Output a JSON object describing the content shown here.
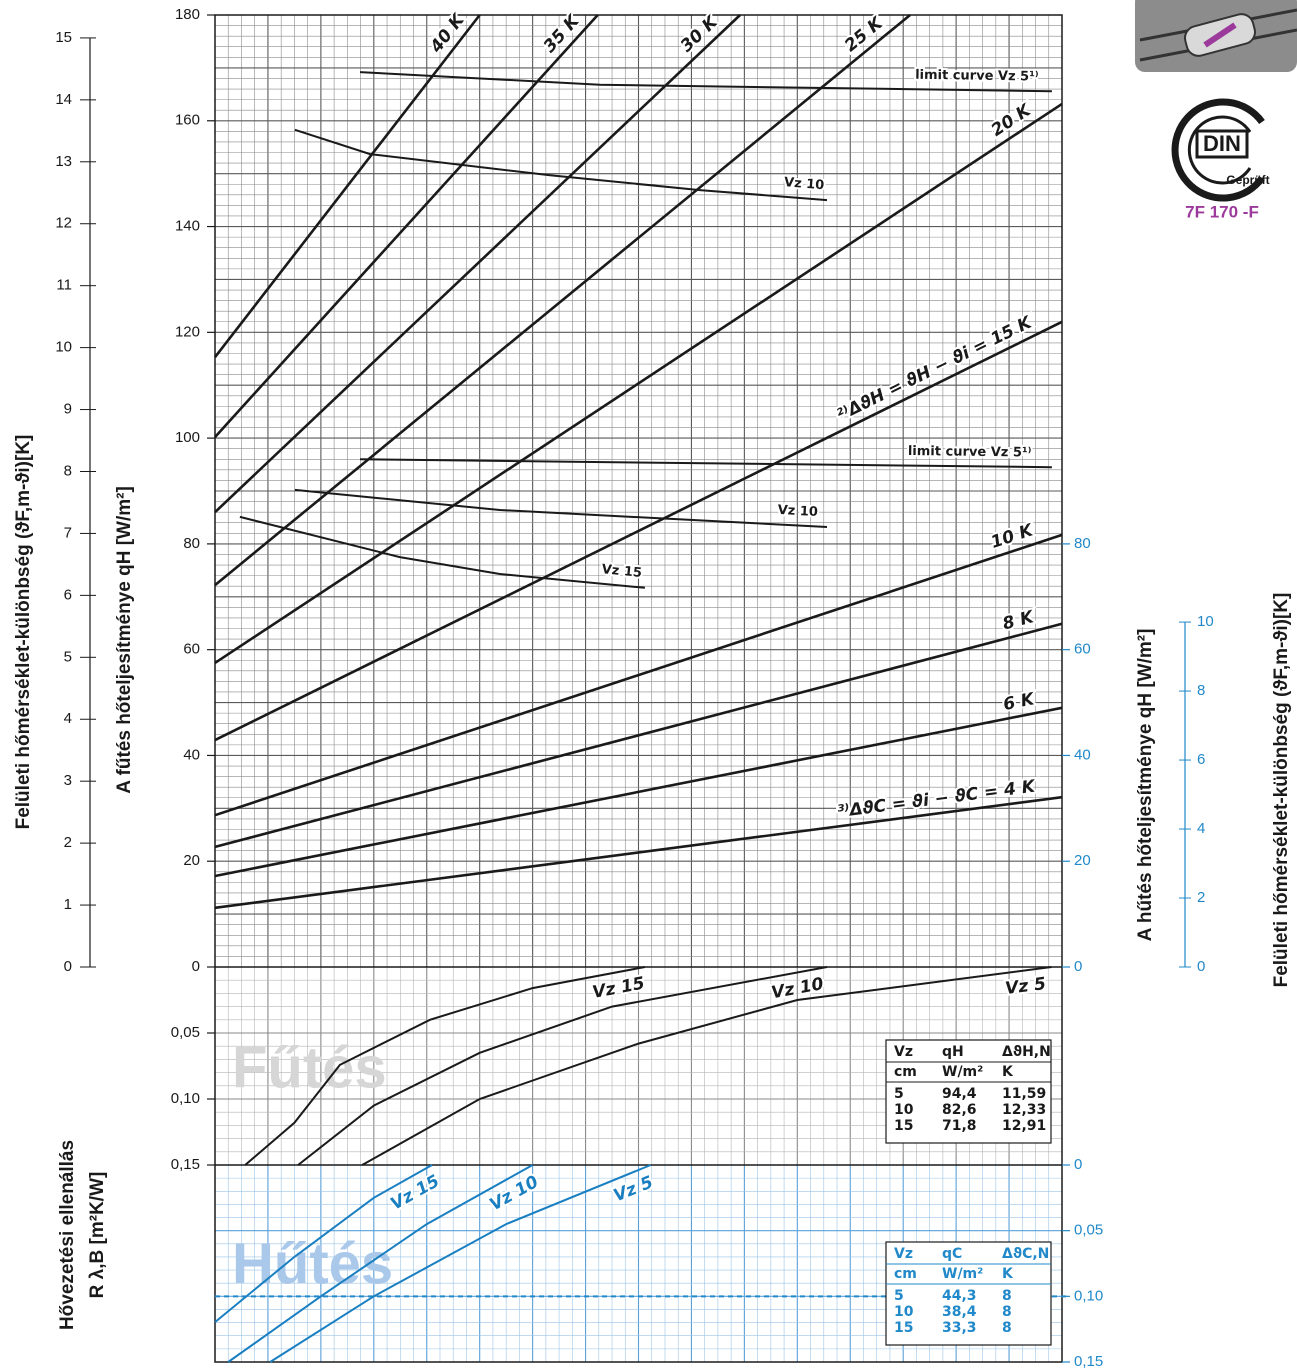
{
  "chart_data": [
    {
      "type": "line",
      "xlim": [
        0,
        16
      ],
      "ylim": [
        0,
        180
      ],
      "yticks": [
        0,
        20,
        40,
        60,
        80,
        100,
        120,
        140,
        160,
        180
      ],
      "grid": true,
      "y_label": "A fűtés hőteljesítménye qH [W/m²]",
      "y2lim": [
        0,
        180
      ],
      "y2ticks": [
        0,
        20,
        40,
        60,
        80
      ],
      "y2_label": "A hűtés hőteljesítménye qH [W/m²]",
      "y2_color": "#2189c9",
      "surface_axes": [
        {
          "label": "Felületi hőmérséklet-különbség (ϑF,m-ϑi)[K]",
          "side": "left",
          "color": "#1a1a1a",
          "lim": [
            0,
            15.37
          ],
          "ticks": [
            0,
            1,
            2,
            3,
            4,
            5,
            6,
            7,
            8,
            9,
            10,
            11,
            12,
            13,
            14,
            15
          ]
        },
        {
          "label": "Felületi hőmérséklet-különbség (ϑF,m-ϑi)[K]",
          "side": "right",
          "color": "#2189c9",
          "lim": [
            0,
            27.6
          ],
          "ticks": [
            0,
            2,
            4,
            6,
            8,
            10
          ]
        }
      ],
      "series": [
        {
          "name": "40 K",
          "color": "#1a1a1a",
          "x": [
            0,
            5.0
          ],
          "values": [
            115.3,
            180
          ]
        },
        {
          "name": "35 K",
          "color": "#1a1a1a",
          "x": [
            0,
            7.23
          ],
          "values": [
            100.2,
            180
          ]
        },
        {
          "name": "30 K",
          "color": "#1a1a1a",
          "x": [
            0,
            9.92
          ],
          "values": [
            86,
            180
          ]
        },
        {
          "name": "25 K",
          "color": "#1a1a1a",
          "x": [
            0,
            13.13
          ],
          "values": [
            72.2,
            180
          ]
        },
        {
          "name": "20 K",
          "color": "#1a1a1a",
          "x": [
            0,
            16
          ],
          "values": [
            57.5,
            163.2
          ]
        },
        {
          "name": "²⁾ΔϑH = ϑH − ϑi = 15 K",
          "color": "#1a1a1a",
          "x": [
            0,
            16
          ],
          "values": [
            42.9,
            122
          ]
        },
        {
          "name": "10 K",
          "color": "#1a1a1a",
          "x": [
            0,
            16
          ],
          "values": [
            28.7,
            81.7
          ]
        },
        {
          "name": "8 K",
          "color": "#1a1a1a",
          "x": [
            0,
            16
          ],
          "values": [
            22.7,
            64.9
          ]
        },
        {
          "name": "6 K",
          "color": "#1a1a1a",
          "x": [
            0,
            16
          ],
          "values": [
            17.2,
            49.0
          ]
        },
        {
          "name": "³⁾ΔϑC = ϑi − ϑC = 4 K",
          "color": "#1a1a1a",
          "x": [
            0,
            16
          ],
          "values": [
            11.2,
            32.1
          ]
        },
        {
          "name": "limit curve Vz 5¹⁾",
          "color": "#1a1a1a",
          "x": [
            2.74,
            7.27,
            15.81
          ],
          "values": [
            169.2,
            166.8,
            165.6
          ]
        },
        {
          "name": "Vz 10",
          "color": "#1a1a1a",
          "x": [
            1.51,
            2.93,
            6.33,
            9.16,
            11.56
          ],
          "values": [
            158.3,
            153.7,
            149.7,
            146.9,
            145.0
          ]
        },
        {
          "name": "limit curve Vz 5¹⁾",
          "color": "#1a1a1a",
          "x": [
            2.74,
            15.81
          ],
          "values": [
            96.0,
            94.5
          ]
        },
        {
          "name": "Vz 10",
          "color": "#1a1a1a",
          "x": [
            1.51,
            5.38,
            11.56
          ],
          "values": [
            90.2,
            86.4,
            83.2
          ]
        },
        {
          "name": "Vz 15",
          "color": "#1a1a1a",
          "x": [
            0.47,
            3.49,
            5.38,
            8.12
          ],
          "values": [
            85.1,
            77.5,
            74.3,
            71.7
          ]
        }
      ]
    },
    {
      "type": "line",
      "title": "Fűtés",
      "xlim": [
        0,
        16
      ],
      "ylim": [
        0,
        0.15
      ],
      "inverted": true,
      "yticks": [
        {
          "value": 0.05,
          "label": "0,05"
        },
        {
          "value": 0.1,
          "label": "0,10"
        },
        {
          "value": 0.15,
          "label": "0,15"
        }
      ],
      "y_label": [
        "Hővezetési ellenállás",
        "R λ,B [m²K/W]"
      ],
      "series": [
        {
          "name": "Vz 15",
          "color": "#1a1a1a",
          "x": [
            0.57,
            1.5,
            2.36,
            4.06,
            6.0,
            8.12
          ],
          "values": [
            0.15,
            0.118,
            0.0742,
            0.04,
            0.016,
            0
          ]
        },
        {
          "name": "Vz 10",
          "color": "#1a1a1a",
          "x": [
            1.57,
            3.0,
            5.0,
            7.5,
            11.56
          ],
          "values": [
            0.15,
            0.105,
            0.065,
            0.03,
            0
          ]
        },
        {
          "name": "Vz 5",
          "color": "#1a1a1a",
          "x": [
            2.78,
            5.0,
            8.0,
            11.0,
            15.8
          ],
          "values": [
            0.15,
            0.1,
            0.058,
            0.025,
            0
          ]
        }
      ],
      "table": {
        "header": [
          [
            "Vz",
            "qH",
            "ΔϑH,N"
          ],
          [
            "cm",
            "W/m²",
            "K"
          ]
        ],
        "rows": [
          [
            "5",
            "94,4",
            "11,59"
          ],
          [
            "10",
            "82,6",
            "12,33"
          ],
          [
            "15",
            "71,8",
            "12,91"
          ]
        ]
      }
    },
    {
      "type": "line",
      "title": "Hűtés",
      "xlim": [
        0,
        16
      ],
      "ylim": [
        0,
        0.15
      ],
      "inverted": true,
      "color": "#2189c9",
      "y2ticks": [
        0,
        {
          "value": 0.05,
          "label": "0,05"
        },
        {
          "value": 0.1,
          "label": "0,10"
        },
        {
          "value": 0.15,
          "label": "0,15"
        }
      ],
      "reference_line": 0.1,
      "series": [
        {
          "name": "Vz 15",
          "color": "#1a7fc1",
          "x": [
            0,
            1.5,
            3.0,
            4.1
          ],
          "values": [
            0.1196,
            0.07,
            0.025,
            0
          ]
        },
        {
          "name": "Vz 10",
          "color": "#1a7fc1",
          "x": [
            0.25,
            2.0,
            4.0,
            6.0
          ],
          "values": [
            0.15,
            0.1,
            0.045,
            0
          ]
        },
        {
          "name": "Vz 5",
          "color": "#1a7fc1",
          "x": [
            1.04,
            3.0,
            5.5,
            8.23
          ],
          "values": [
            0.15,
            0.1,
            0.045,
            0
          ]
        }
      ],
      "table": {
        "header": [
          [
            "Vz",
            "qC",
            "ΔϑC,N"
          ],
          [
            "cm",
            "W/m²",
            "K"
          ]
        ],
        "rows": [
          [
            "5",
            "44,3",
            "8"
          ],
          [
            "10",
            "38,4",
            "8"
          ],
          [
            "15",
            "33,3",
            "8"
          ]
        ]
      }
    }
  ],
  "logo": {
    "mark": "DIN",
    "caption": "Geprüft",
    "code": "7F 170 -F"
  }
}
